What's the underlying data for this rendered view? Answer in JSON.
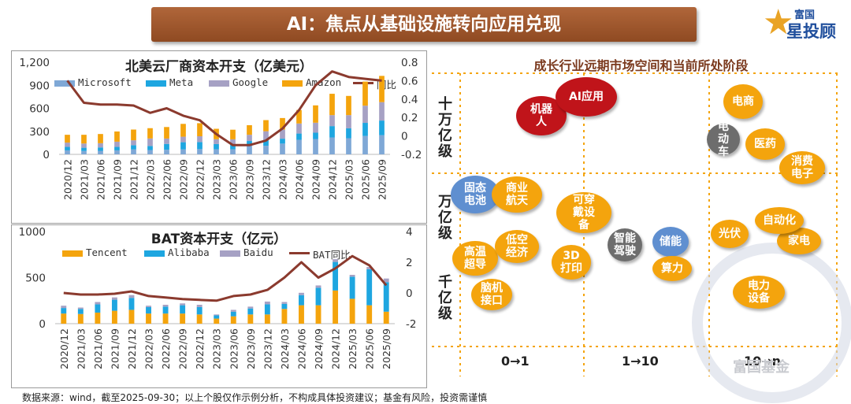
{
  "header": {
    "title": "AI：焦点从基础设施转向应用兑现"
  },
  "logo": {
    "top_text": "富国",
    "main_text": "星投顾",
    "star_glyph": "★"
  },
  "colors": {
    "accent": "#a0552a",
    "orange": "#f4a40d",
    "blue": "#1ea6e0",
    "gray": "#a6a1c4",
    "line": "#8b3a2e"
  },
  "chart_data": [
    {
      "type": "bar",
      "stacked": true,
      "title": "北美云厂商资本开支（亿美元）",
      "categories": [
        "2020/12",
        "2021/03",
        "2021/06",
        "2021/09",
        "2021/12",
        "2022/03",
        "2022/06",
        "2022/09",
        "2022/12",
        "2023/03",
        "2023/06",
        "2023/09",
        "2023/12",
        "2024/03",
        "2024/06",
        "2024/09",
        "2024/12",
        "2025/03",
        "2025/06",
        "2025/09"
      ],
      "series": [
        {
          "name": "Microsoft",
          "color": "#7fa8d6",
          "values": [
            52,
            44,
            46,
            52,
            64,
            56,
            60,
            64,
            68,
            66,
            66,
            110,
            112,
            140,
            190,
            200,
            220,
            210,
            240,
            250
          ]
        },
        {
          "name": "Meta",
          "color": "#1ea6e0",
          "values": [
            45,
            42,
            44,
            45,
            55,
            53,
            76,
            94,
            92,
            68,
            61,
            64,
            79,
            64,
            81,
            82,
            148,
            129,
            170,
            190
          ]
        },
        {
          "name": "Google",
          "color": "#a6a1c4",
          "values": [
            56,
            55,
            55,
            68,
            64,
            98,
            70,
            72,
            76,
            63,
            69,
            81,
            110,
            120,
            131,
            130,
            143,
            172,
            224,
            240
          ]
        },
        {
          "name": "Amazon",
          "color": "#f4a40d",
          "values": [
            102,
            114,
            120,
            133,
            140,
            134,
            150,
            167,
            170,
            136,
            125,
            125,
            145,
            149,
            176,
            226,
            278,
            250,
            314,
            342
          ]
        }
      ],
      "line": {
        "name": "同比",
        "color": "#8b3a2e",
        "values": [
          0.6,
          0.36,
          0.34,
          0.34,
          0.33,
          0.25,
          0.3,
          0.22,
          0.17,
          0.02,
          -0.1,
          -0.1,
          -0.05,
          0.08,
          0.28,
          0.55,
          0.7,
          0.64,
          0.62,
          0.6
        ]
      },
      "ylim": [
        0,
        1200
      ],
      "yticks": [
        "0",
        "300",
        "600",
        "900",
        "1,200"
      ],
      "y2lim": [
        -0.2,
        0.8
      ],
      "y2ticks": [
        "-0.2",
        "0",
        "0.2",
        "0.4",
        "0.6",
        "0.8"
      ]
    },
    {
      "type": "bar",
      "stacked": true,
      "title": "BAT资本开支（亿元）",
      "categories": [
        "2020/12",
        "2021/03",
        "2021/06",
        "2021/09",
        "2021/12",
        "2022/03",
        "2022/06",
        "2022/09",
        "2022/12",
        "2023/03",
        "2023/06",
        "2023/09",
        "2023/12",
        "2024/03",
        "2024/06",
        "2024/09",
        "2024/12",
        "2025/03",
        "2025/06",
        "2025/09"
      ],
      "series": [
        {
          "name": "Tencent",
          "color": "#f4a40d",
          "values": [
            110,
            105,
            120,
            140,
            150,
            110,
            110,
            110,
            100,
            55,
            80,
            100,
            100,
            160,
            200,
            200,
            360,
            270,
            200,
            130
          ]
        },
        {
          "name": "Alibaba",
          "color": "#1ea6e0",
          "values": [
            60,
            55,
            90,
            120,
            130,
            70,
            75,
            90,
            80,
            35,
            50,
            65,
            110,
            55,
            110,
            190,
            310,
            240,
            390,
            320
          ]
        },
        {
          "name": "Baidu",
          "color": "#a6a1c4",
          "values": [
            25,
            15,
            25,
            25,
            30,
            15,
            20,
            20,
            25,
            10,
            20,
            20,
            30,
            20,
            25,
            25,
            30,
            20,
            25,
            40
          ]
        }
      ],
      "line": {
        "name": "BAT同比",
        "color": "#8b3a2e",
        "values": [
          0,
          -0.1,
          -0.1,
          -0.05,
          0.1,
          -0.2,
          -0.3,
          -0.4,
          -0.45,
          -0.5,
          -0.2,
          -0.1,
          0.2,
          1.0,
          2.0,
          1.0,
          1.6,
          2.4,
          1.8,
          0.5
        ]
      },
      "ylim": [
        0,
        1000
      ],
      "yticks": [
        "0",
        "500",
        "1000"
      ],
      "y2lim": [
        -2,
        4
      ],
      "y2ticks": [
        "-2",
        "0",
        "2",
        "4"
      ]
    }
  ],
  "market_matrix": {
    "title": "成长行业远期市场空间和当前所处阶段",
    "y_labels": [
      "十万亿级",
      "万亿级",
      "千亿级"
    ],
    "x_labels": [
      "0→1",
      "1→10",
      "10→n"
    ],
    "bubbles": [
      {
        "key": "ai_app",
        "label": "AI应用"
      },
      {
        "key": "robot",
        "label": "机器人"
      },
      {
        "key": "ecommerce",
        "label": "电商"
      },
      {
        "key": "ev",
        "label": "电动车"
      },
      {
        "key": "pharma",
        "label": "医药"
      },
      {
        "key": "consumer_electronics",
        "label": "消费电子"
      },
      {
        "key": "solid_battery",
        "label": "固态电池"
      },
      {
        "key": "commercial_space",
        "label": "商业航天"
      },
      {
        "key": "wearables",
        "label": "可穿戴设备"
      },
      {
        "key": "superconductor",
        "label": "高温超导"
      },
      {
        "key": "low_altitude",
        "label": "低空经济"
      },
      {
        "key": "bci",
        "label": "脑机接口"
      },
      {
        "key": "printing_3d",
        "label": "3D打印"
      },
      {
        "key": "smart_driving",
        "label": "智能驾驶"
      },
      {
        "key": "energy_storage",
        "label": "储能"
      },
      {
        "key": "computing",
        "label": "算力"
      },
      {
        "key": "pv",
        "label": "光伏"
      },
      {
        "key": "automation",
        "label": "自动化"
      },
      {
        "key": "appliances",
        "label": "家电"
      },
      {
        "key": "power_equipment",
        "label": "电力设备"
      }
    ]
  },
  "footer": {
    "text": "数据来源：wind，截至2025-09-30；以上个股仅作示例分析，不构成具体投资建议；基金有风险，投资需谨慎"
  },
  "watermark": {
    "text": "富国基金"
  }
}
